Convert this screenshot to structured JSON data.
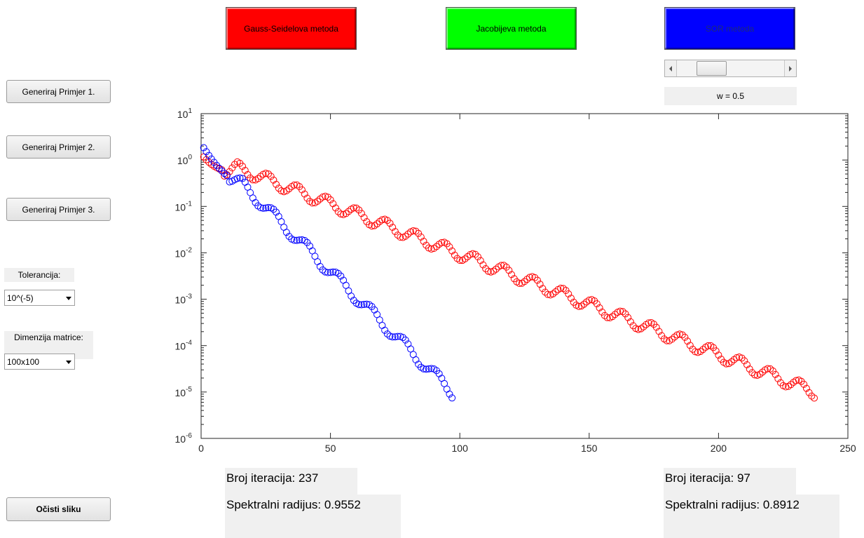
{
  "sidebar": {
    "example1_label": "Generiraj Primjer 1.",
    "example2_label": "Generiraj Primjer 2.",
    "example3_label": "Generiraj Primjer 3.",
    "tolerance_label": "Tolerancija:",
    "tolerance_value": "10^(-5)",
    "dimension_label": "Dimenzija matrice:",
    "dimension_value": "100x100",
    "clear_label": "Očisti sliku"
  },
  "methods": {
    "gauss_seidel": {
      "label": "Gauss-Seidelova metoda",
      "color": "#ff0000"
    },
    "jacobi": {
      "label": "Jacobijeva metoda",
      "color": "#00ff00"
    },
    "sor": {
      "label": "SOR metoda",
      "color": "#0000ff"
    }
  },
  "sor_slider": {
    "omega_label": "w = 0.5",
    "value": 0.5,
    "min": 0,
    "max": 2
  },
  "results_left": {
    "iterations": "Broj iteracija: 237",
    "spectral": "Spektralni radijus: 0.9552"
  },
  "results_right": {
    "iterations": "Broj iteracija: 97",
    "spectral": "Spektralni radijus: 0.8912"
  },
  "chart_data": {
    "type": "scatter",
    "xlim": [
      0,
      250
    ],
    "ylim": [
      1e-06,
      10
    ],
    "yscale": "log",
    "x_ticks": [
      "0",
      "50",
      "100",
      "150",
      "200",
      "250"
    ],
    "y_ticks": [
      {
        "base": "10",
        "exp": "1"
      },
      {
        "base": "10",
        "exp": "0"
      },
      {
        "base": "10",
        "exp": "-1"
      },
      {
        "base": "10",
        "exp": "-2"
      },
      {
        "base": "10",
        "exp": "-3"
      },
      {
        "base": "10",
        "exp": "-4"
      },
      {
        "base": "10",
        "exp": "-5"
      },
      {
        "base": "10",
        "exp": "-6"
      }
    ],
    "grid": false,
    "series": [
      {
        "color": "#ff0000",
        "n_points": 237,
        "y_start": 1.3,
        "y_end": 1e-05
      },
      {
        "color": "#0000ff",
        "n_points": 97,
        "y_start": 2.0,
        "y_end": 1e-05
      }
    ]
  }
}
